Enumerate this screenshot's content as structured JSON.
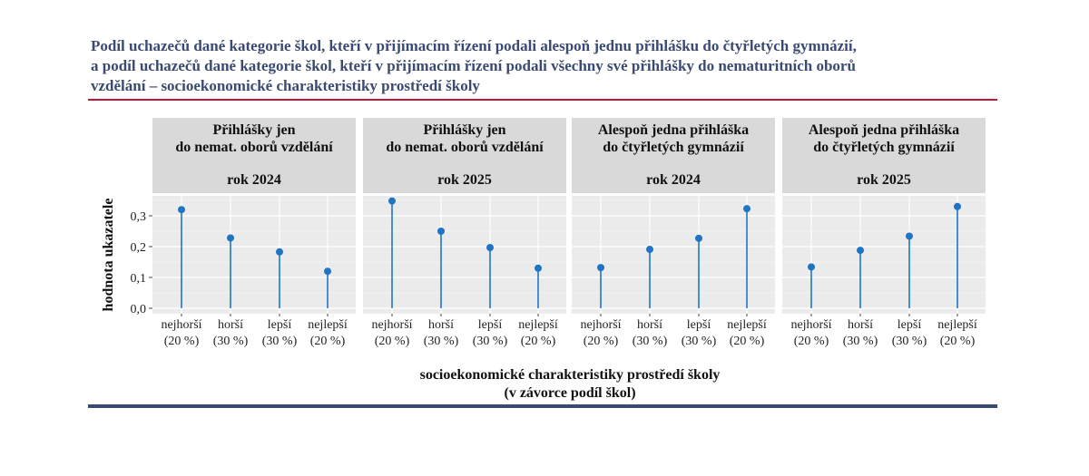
{
  "title_lines": [
    "Podíl uchazečů dané kategorie škol, kteří v přijímacím řízení podali alespoň jednu přihlášku do čtyřletých gymnázií,",
    "a podíl uchazečů dané kategorie škol, kteří v přijímacím řízení podali všechny své přihlášky do nematuritních oborů",
    "vzdělání – socioekonomické charakteristiky prostředí školy"
  ],
  "colors": {
    "title": "#3b4a72",
    "rule": "#c0163a",
    "point": "#1f74c4",
    "panel_bg": "#ebebeb",
    "strip_bg": "#d9d9d9"
  },
  "chart_data": {
    "type": "scatter",
    "style": "lollipop",
    "ylabel": "hodnota ukazatele",
    "xlabel_lines": [
      "socioekonomické charakteristiky prostředí školy",
      "(v závorce podíl škol)"
    ],
    "ylim": [
      0,
      0.36
    ],
    "yticks": [
      "0,0",
      "0,1",
      "0,2",
      "0,3"
    ],
    "ytick_values": [
      0,
      0.1,
      0.2,
      0.3
    ],
    "grid": true,
    "categories": [
      [
        "nejhorší",
        "(20 %)"
      ],
      [
        "horší",
        "(30 %)"
      ],
      [
        "lepší",
        "(30 %)"
      ],
      [
        "nejlepší",
        "(20 %)"
      ]
    ],
    "panels": [
      {
        "strip": [
          "Přihlášky jen",
          "do nemat. oborů vzdělání",
          "",
          "rok 2024"
        ],
        "values": [
          0.32,
          0.228,
          0.183,
          0.12
        ]
      },
      {
        "strip": [
          "Přihlášky jen",
          "do nemat. oborů vzdělání",
          "",
          "rok 2025"
        ],
        "values": [
          0.348,
          0.25,
          0.197,
          0.13
        ]
      },
      {
        "strip": [
          "Alespoň jedna přihláška",
          "do čtyřletých gymnázií",
          "",
          "rok 2024"
        ],
        "values": [
          0.132,
          0.191,
          0.227,
          0.323
        ]
      },
      {
        "strip": [
          "Alespoň jedna přihláška",
          "do čtyřletých gymnázií",
          "",
          "rok 2025"
        ],
        "values": [
          0.134,
          0.188,
          0.234,
          0.33
        ]
      }
    ]
  }
}
